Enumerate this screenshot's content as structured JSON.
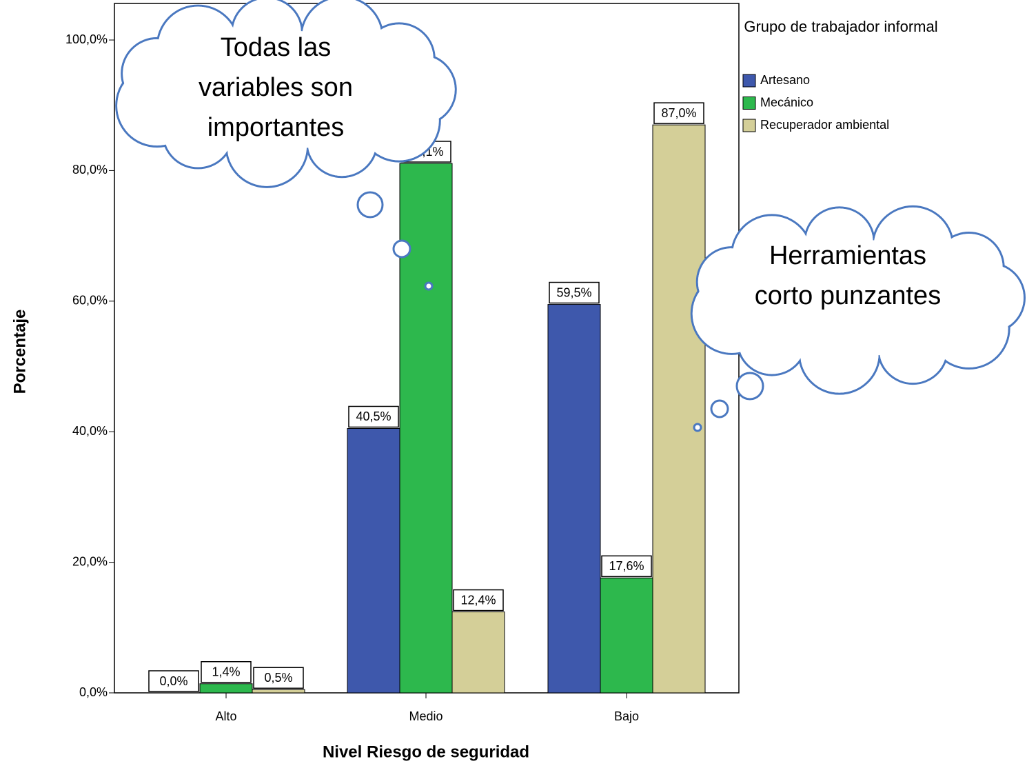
{
  "chart_data": {
    "type": "bar",
    "y_label": "Porcentaje",
    "x_label": "Nivel Riesgo de seguridad",
    "legend_title": "Grupo de trabajador informal",
    "categories": [
      "Alto",
      "Medio",
      "Bajo"
    ],
    "series": [
      {
        "name": "Artesano",
        "color": "#3e58ac",
        "values": [
          0,
          40.5,
          59.5
        ],
        "value_labels": [
          "0,0%",
          "40,5%",
          "59,5%"
        ]
      },
      {
        "name": "Mecánico",
        "color": "#2db84d",
        "values": [
          1.4,
          81.1,
          17.6
        ],
        "value_labels": [
          "1,4%",
          "81,1%",
          "17,6%"
        ]
      },
      {
        "name": "Recuperador ambiental",
        "color": "#d4cf98",
        "values": [
          0.5,
          12.4,
          87.0
        ],
        "value_labels": [
          "0,5%",
          "12,4%",
          "87,0%"
        ]
      }
    ],
    "ylim": [
      0,
      105.6
    ],
    "yticks": [
      {
        "value": 0,
        "label": "0,0%"
      },
      {
        "value": 20,
        "label": "20,0%"
      },
      {
        "value": 40,
        "label": "40,0%"
      },
      {
        "value": 60,
        "label": "60,0%"
      },
      {
        "value": 80,
        "label": "80,0%"
      },
      {
        "value": 100,
        "label": "100,0%"
      }
    ],
    "grid": false,
    "annotations": [
      "Todas las variables son importantes",
      "Herramientas corto punzantes"
    ]
  }
}
